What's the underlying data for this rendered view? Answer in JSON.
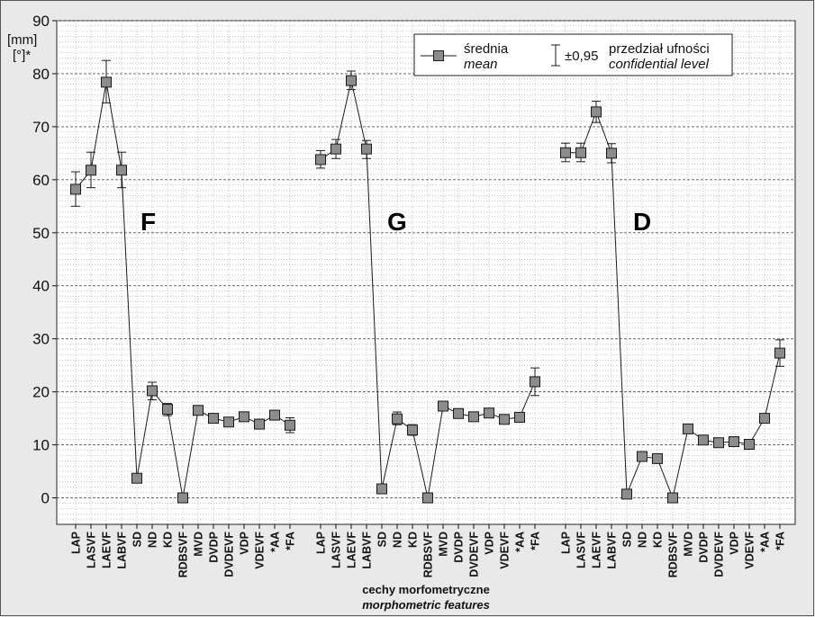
{
  "chart_data": {
    "type": "line",
    "yaxis": {
      "unit_label_1": "[mm]",
      "unit_label_2": "[°]*",
      "ylim": [
        -5,
        90
      ],
      "ticks": [
        0,
        10,
        20,
        30,
        40,
        50,
        60,
        70,
        80,
        90
      ]
    },
    "xlabel_1": "cechy morfometryczne",
    "xlabel_2": "morphometric features",
    "legend": {
      "mean_1": "średnia",
      "mean_2": "mean",
      "ci_1": "±0,95",
      "ci_2": "przedział ufności",
      "ci_3": "confidential level",
      "placement": "top-right"
    },
    "grid": true,
    "groups": [
      {
        "label": "F",
        "points": [
          {
            "name": "LAP",
            "mean": 58.2,
            "low": 55.0,
            "high": 61.5
          },
          {
            "name": "LASVF",
            "mean": 61.8,
            "low": 58.5,
            "high": 65.2
          },
          {
            "name": "LAEVF",
            "mean": 78.4,
            "low": 74.5,
            "high": 82.5
          },
          {
            "name": "LABVF",
            "mean": 61.8,
            "low": 58.5,
            "high": 65.2
          },
          {
            "name": "SD",
            "mean": 3.7,
            "low": 3.2,
            "high": 4.2
          },
          {
            "name": "ND",
            "mean": 20.2,
            "low": 18.5,
            "high": 21.8
          },
          {
            "name": "KD",
            "mean": 16.7,
            "low": 15.5,
            "high": 17.8
          },
          {
            "name": "RDBSVF",
            "mean": 0.0,
            "low": 0.0,
            "high": 0.0
          },
          {
            "name": "MVD",
            "mean": 16.5,
            "low": 16.0,
            "high": 17.0
          },
          {
            "name": "DVDP",
            "mean": 15.0,
            "low": 14.6,
            "high": 15.4
          },
          {
            "name": "DVDEVF",
            "mean": 14.3,
            "low": 13.8,
            "high": 14.8
          },
          {
            "name": "VDP",
            "mean": 15.3,
            "low": 14.8,
            "high": 15.8
          },
          {
            "name": "VDEVF",
            "mean": 13.9,
            "low": 13.4,
            "high": 14.4
          },
          {
            "name": "*AA",
            "mean": 15.6,
            "low": 15.2,
            "high": 16.0
          },
          {
            "name": "*FA",
            "mean": 13.7,
            "low": 12.3,
            "high": 15.1
          }
        ]
      },
      {
        "label": "G",
        "points": [
          {
            "name": "LAP",
            "mean": 63.8,
            "low": 62.2,
            "high": 65.5
          },
          {
            "name": "LASVF",
            "mean": 65.8,
            "low": 64.0,
            "high": 67.6
          },
          {
            "name": "LAEVF",
            "mean": 78.7,
            "low": 77.0,
            "high": 80.5
          },
          {
            "name": "LABVF",
            "mean": 65.8,
            "low": 64.0,
            "high": 67.4
          },
          {
            "name": "SD",
            "mean": 1.7,
            "low": 1.3,
            "high": 2.1
          },
          {
            "name": "ND",
            "mean": 14.9,
            "low": 13.8,
            "high": 16.2
          },
          {
            "name": "KD",
            "mean": 12.8,
            "low": 11.8,
            "high": 13.8
          },
          {
            "name": "RDBSVF",
            "mean": 0.0,
            "low": 0.0,
            "high": 0.0
          },
          {
            "name": "MVD",
            "mean": 17.3,
            "low": 16.8,
            "high": 17.8
          },
          {
            "name": "DVDP",
            "mean": 15.9,
            "low": 15.5,
            "high": 16.3
          },
          {
            "name": "DVDEVF",
            "mean": 15.3,
            "low": 14.9,
            "high": 15.7
          },
          {
            "name": "VDP",
            "mean": 16.0,
            "low": 15.6,
            "high": 16.4
          },
          {
            "name": "VDEVF",
            "mean": 14.8,
            "low": 14.4,
            "high": 15.2
          },
          {
            "name": "*AA",
            "mean": 15.2,
            "low": 14.8,
            "high": 15.6
          },
          {
            "name": "*FA",
            "mean": 21.9,
            "low": 19.3,
            "high": 24.5
          }
        ]
      },
      {
        "label": "D",
        "points": [
          {
            "name": "LAP",
            "mean": 65.1,
            "low": 63.4,
            "high": 66.9
          },
          {
            "name": "LASVF",
            "mean": 65.1,
            "low": 63.4,
            "high": 66.9
          },
          {
            "name": "LAEVF",
            "mean": 72.8,
            "low": 70.8,
            "high": 74.8
          },
          {
            "name": "LABVF",
            "mean": 65.0,
            "low": 63.2,
            "high": 66.8
          },
          {
            "name": "SD",
            "mean": 0.7,
            "low": 0.4,
            "high": 1.0
          },
          {
            "name": "ND",
            "mean": 7.8,
            "low": 7.5,
            "high": 8.2
          },
          {
            "name": "KD",
            "mean": 7.4,
            "low": 7.0,
            "high": 7.8
          },
          {
            "name": "RDBSVF",
            "mean": 0.0,
            "low": 0.0,
            "high": 0.0
          },
          {
            "name": "MVD",
            "mean": 13.0,
            "low": 12.6,
            "high": 13.4
          },
          {
            "name": "DVDP",
            "mean": 10.9,
            "low": 10.6,
            "high": 11.2
          },
          {
            "name": "DVDEVF",
            "mean": 10.4,
            "low": 10.1,
            "high": 10.7
          },
          {
            "name": "VDP",
            "mean": 10.6,
            "low": 10.3,
            "high": 10.9
          },
          {
            "name": "VDEVF",
            "mean": 10.1,
            "low": 9.8,
            "high": 10.4
          },
          {
            "name": "*AA",
            "mean": 15.0,
            "low": 14.6,
            "high": 15.4
          },
          {
            "name": "*FA",
            "mean": 27.3,
            "low": 24.8,
            "high": 29.8
          }
        ]
      }
    ],
    "colors": {
      "marker_fill": "#8c8c8c",
      "line": "#1a1a1a",
      "grid": "#6a6a6a",
      "outer_bg": "#e9e9e9"
    }
  }
}
